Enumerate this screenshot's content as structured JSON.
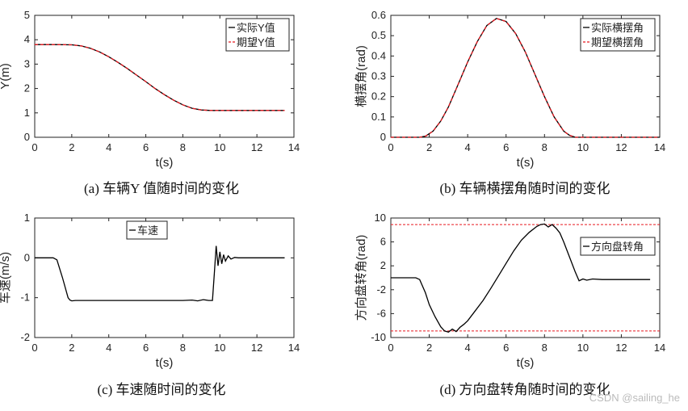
{
  "chart_data": [
    {
      "type": "line",
      "caption": "(a)  车辆Y 值随时间的变化",
      "xlabel": "t(s)",
      "ylabel": "Y(m)",
      "xlim": [
        0,
        14
      ],
      "ylim": [
        0,
        5
      ],
      "xticks": [
        0,
        2,
        4,
        6,
        8,
        10,
        12,
        14
      ],
      "yticks": [
        0,
        1,
        2,
        3,
        4,
        5
      ],
      "legend_position": "top-right",
      "series": [
        {
          "name": "实际Y值",
          "color": "#000000",
          "dash": "solid",
          "x": [
            0,
            1,
            2,
            2.5,
            3,
            3.5,
            4,
            4.5,
            5,
            5.5,
            6,
            6.5,
            7,
            7.5,
            8,
            8.5,
            9,
            9.5,
            10,
            11,
            12,
            13.5
          ],
          "y": [
            3.8,
            3.8,
            3.79,
            3.75,
            3.65,
            3.5,
            3.3,
            3.07,
            2.82,
            2.55,
            2.28,
            2.0,
            1.75,
            1.52,
            1.33,
            1.19,
            1.12,
            1.1,
            1.1,
            1.1,
            1.1,
            1.1
          ]
        },
        {
          "name": "期望Y值",
          "color": "#e8181f",
          "dash": "dashed",
          "x": [
            0,
            1,
            2,
            2.5,
            3,
            3.5,
            4,
            4.5,
            5,
            5.5,
            6,
            6.5,
            7,
            7.5,
            8,
            8.5,
            9,
            9.5,
            10,
            11,
            12,
            13.5
          ],
          "y": [
            3.8,
            3.8,
            3.79,
            3.75,
            3.65,
            3.5,
            3.3,
            3.07,
            2.82,
            2.55,
            2.28,
            2.0,
            1.75,
            1.52,
            1.33,
            1.19,
            1.12,
            1.1,
            1.1,
            1.1,
            1.1,
            1.1
          ]
        }
      ]
    },
    {
      "type": "line",
      "caption": "(b)  车辆横摆角随时间的变化",
      "xlabel": "t(s)",
      "ylabel": "横摆角(rad)",
      "xlim": [
        0,
        14
      ],
      "ylim": [
        0,
        0.6
      ],
      "xticks": [
        0,
        2,
        4,
        6,
        8,
        10,
        12,
        14
      ],
      "yticks": [
        0,
        0.1,
        0.2,
        0.3,
        0.4,
        0.5,
        0.6
      ],
      "legend_position": "top-right",
      "series": [
        {
          "name": "实际横摆角",
          "color": "#000000",
          "dash": "solid",
          "x": [
            0,
            1.5,
            1.8,
            2.2,
            2.6,
            3,
            3.5,
            4,
            4.5,
            5,
            5.5,
            6,
            6.5,
            7,
            7.5,
            8,
            8.5,
            9,
            9.3,
            9.6,
            10,
            12,
            14
          ],
          "y": [
            0,
            0,
            0.005,
            0.03,
            0.08,
            0.15,
            0.26,
            0.37,
            0.47,
            0.55,
            0.585,
            0.57,
            0.51,
            0.42,
            0.31,
            0.2,
            0.1,
            0.03,
            0.01,
            0,
            0,
            0,
            0
          ]
        },
        {
          "name": "期望横摆角",
          "color": "#e8181f",
          "dash": "dashed",
          "x": [
            0,
            1.5,
            1.8,
            2.2,
            2.6,
            3,
            3.5,
            4,
            4.5,
            5,
            5.5,
            6,
            6.5,
            7,
            7.5,
            8,
            8.5,
            9,
            9.3,
            9.6,
            10,
            12,
            14
          ],
          "y": [
            0,
            0,
            0.005,
            0.03,
            0.08,
            0.15,
            0.26,
            0.37,
            0.47,
            0.55,
            0.585,
            0.57,
            0.51,
            0.42,
            0.31,
            0.2,
            0.1,
            0.03,
            0.01,
            0,
            0,
            0,
            0
          ]
        }
      ]
    },
    {
      "type": "line",
      "caption": "(c)  车速随时间的变化",
      "xlabel": "t(s)",
      "ylabel": "车速(m/s)",
      "xlim": [
        0,
        14
      ],
      "ylim": [
        -2,
        1
      ],
      "xticks": [
        0,
        2,
        4,
        6,
        8,
        10,
        12,
        14
      ],
      "yticks": [
        -2,
        -1,
        0,
        1
      ],
      "legend_position": "top-center",
      "series": [
        {
          "name": "车速",
          "color": "#000000",
          "dash": "solid",
          "x": [
            0,
            1.0,
            1.2,
            1.5,
            1.8,
            1.9,
            2.0,
            2.2,
            2.5,
            3,
            4,
            5,
            6,
            7,
            8,
            8.5,
            8.8,
            9.1,
            9.4,
            9.6,
            9.7,
            9.8,
            9.9,
            10.0,
            10.1,
            10.2,
            10.3,
            10.45,
            10.6,
            10.8,
            11,
            12,
            13.5
          ],
          "y": [
            0,
            0,
            -0.05,
            -0.5,
            -1.0,
            -1.06,
            -1.08,
            -1.07,
            -1.07,
            -1.07,
            -1.07,
            -1.07,
            -1.07,
            -1.07,
            -1.07,
            -1.06,
            -1.08,
            -1.05,
            -1.07,
            -1.07,
            -0.4,
            0.3,
            -0.2,
            0.15,
            -0.15,
            0.08,
            -0.08,
            0.05,
            -0.03,
            0.01,
            0,
            0,
            0
          ]
        }
      ]
    },
    {
      "type": "line",
      "caption": "(d)  方向盘转角随时间的变化",
      "xlabel": "t(s)",
      "ylabel": "方向盘转角(rad)",
      "xlim": [
        0,
        14
      ],
      "ylim": [
        -10,
        10
      ],
      "xticks": [
        0,
        2,
        4,
        6,
        8,
        10,
        12,
        14
      ],
      "yticks": [
        -10,
        -6,
        -2,
        2,
        6,
        10
      ],
      "legend_position": "center-right",
      "reference_lines": [
        8.9,
        -8.9
      ],
      "reference_color": "#e8181f",
      "series": [
        {
          "name": "方向盘转角",
          "color": "#000000",
          "dash": "solid",
          "x": [
            0,
            1.3,
            1.5,
            1.8,
            2.0,
            2.3,
            2.6,
            2.8,
            3.0,
            3.2,
            3.4,
            3.6,
            3.8,
            4.0,
            4.4,
            4.8,
            5.2,
            5.6,
            6.0,
            6.4,
            6.8,
            7.2,
            7.6,
            7.8,
            8.0,
            8.2,
            8.4,
            8.6,
            8.8,
            9.0,
            9.3,
            9.6,
            9.8,
            10.0,
            10.2,
            10.5,
            11,
            12,
            13.5
          ],
          "y": [
            0,
            0,
            -0.3,
            -2.5,
            -4.5,
            -6.5,
            -8.2,
            -8.9,
            -9.1,
            -8.6,
            -9.0,
            -8.3,
            -7.8,
            -7.2,
            -5.5,
            -3.8,
            -1.8,
            0.3,
            2.4,
            4.5,
            6.3,
            7.6,
            8.6,
            8.9,
            9.0,
            8.5,
            8.9,
            8.3,
            7.5,
            6.0,
            3.5,
            1.0,
            -0.5,
            -0.2,
            -0.4,
            -0.2,
            -0.3,
            -0.3,
            -0.3
          ]
        }
      ]
    }
  ],
  "watermark": "CSDN @sailing_he"
}
